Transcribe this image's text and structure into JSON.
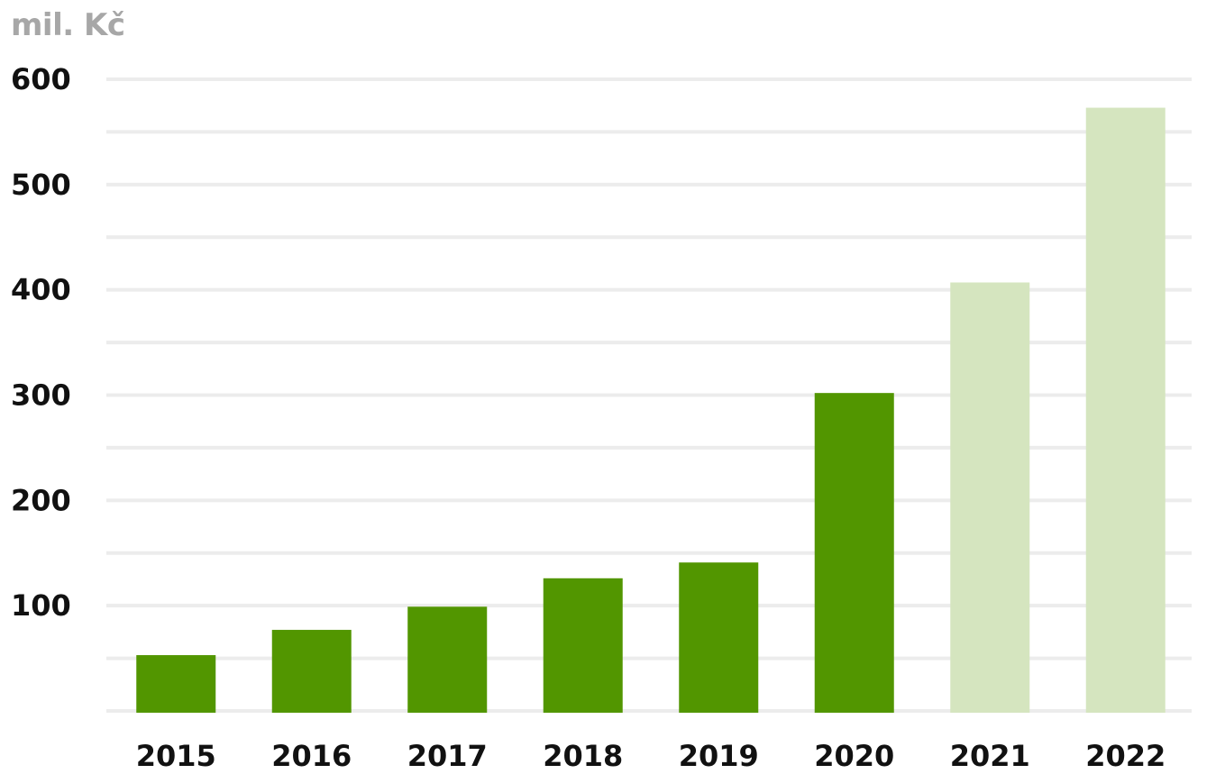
{
  "chart_data": {
    "type": "bar",
    "unit_label": "mil. Kč",
    "categories": [
      "2015",
      "2016",
      "2017",
      "2018",
      "2019",
      "2020",
      "2021",
      "2022"
    ],
    "values": [
      53,
      77,
      99,
      126,
      141,
      302,
      407,
      573
    ],
    "forecast": [
      false,
      false,
      false,
      false,
      false,
      false,
      true,
      true
    ],
    "yticks": [
      100,
      200,
      300,
      400,
      500,
      600
    ],
    "ylim": [
      0,
      600
    ],
    "minor_grid_step": 50,
    "grid": true,
    "colors": {
      "actual": "#529600",
      "forecast": "#d5e5bf",
      "grid": "#ececec",
      "unit_text": "#a7a7a7",
      "tick_text": "#111111"
    }
  }
}
